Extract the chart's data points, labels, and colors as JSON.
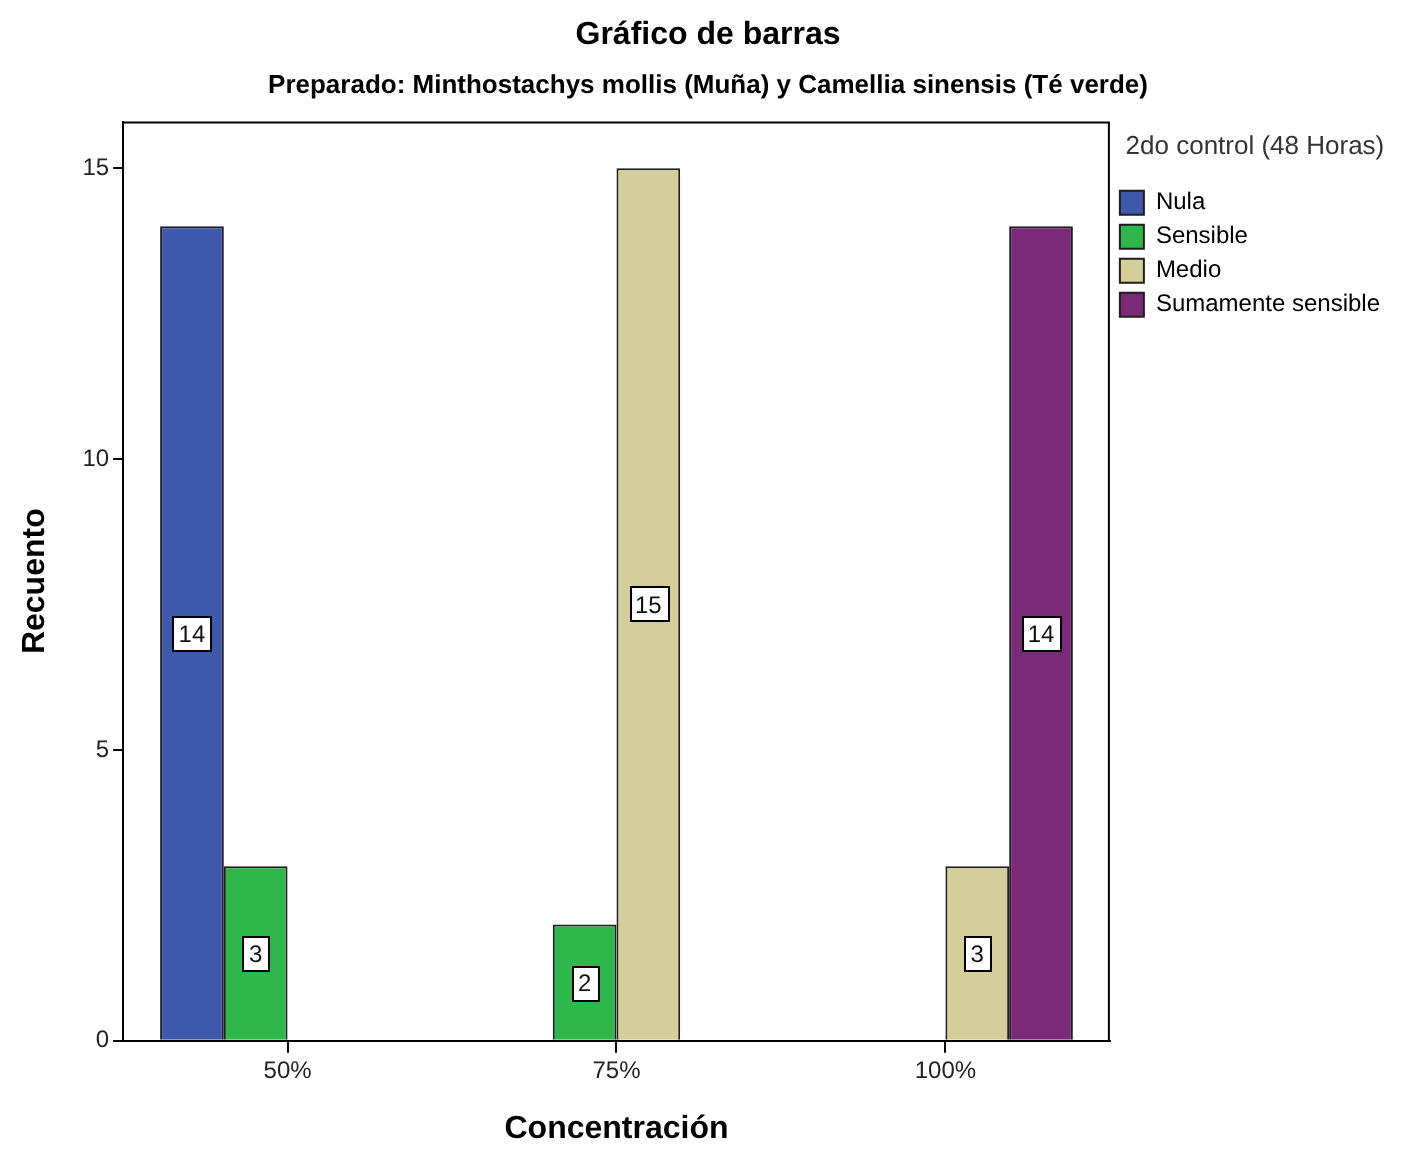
{
  "chart_data": {
    "type": "bar",
    "title": "Gráfico de barras",
    "subtitle": "Preparado: Minthostachys mollis (Muña) y Camellia sinensis (Té verde)",
    "xlabel": "Concentración",
    "ylabel": "Recuento",
    "legend_title": "2do control (48 Horas)",
    "categories": [
      "50%",
      "75%",
      "100%"
    ],
    "series": [
      {
        "name": "Nula",
        "color": "#3e58ac",
        "values": [
          14,
          null,
          null
        ]
      },
      {
        "name": "Sensible",
        "color": "#2eb84b",
        "values": [
          3,
          2,
          null
        ]
      },
      {
        "name": "Medio",
        "color": "#d4cf9a",
        "values": [
          null,
          15,
          3
        ]
      },
      {
        "name": "Sumamente sensible",
        "color": "#7b2979",
        "values": [
          null,
          null,
          14
        ]
      }
    ],
    "ylim": [
      0,
      15.8
    ],
    "yticks": [
      0,
      5,
      10,
      15
    ],
    "grid": false,
    "legend": "top right",
    "data_labels": true
  }
}
